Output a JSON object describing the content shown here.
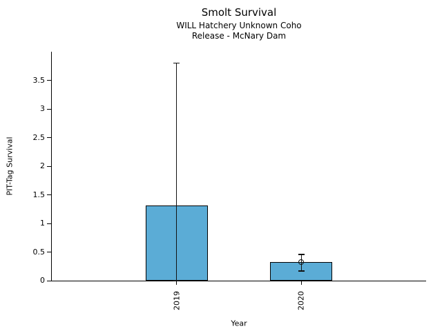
{
  "chart_data": {
    "type": "bar",
    "title": "Smolt Survival",
    "subtitle": [
      "WILL Hatchery Unknown Coho",
      "Release - McNary Dam"
    ],
    "categories": [
      "2019",
      "2020"
    ],
    "values": [
      1.31,
      0.33
    ],
    "error_low": [
      0.0,
      0.17
    ],
    "error_high": [
      3.8,
      0.46
    ],
    "point_estimates": [
      null,
      0.33
    ],
    "xlabel": "Year",
    "ylabel": "PIT-Tag Survival",
    "ylim": [
      0,
      4
    ],
    "yticks": [
      0,
      0.5,
      1,
      1.5,
      2,
      2.5,
      3,
      3.5
    ],
    "ytick_labels": [
      "0",
      "0.5",
      "1",
      "1.5",
      "2",
      "2.5",
      "3",
      "3.5"
    ],
    "grid": false,
    "legend": false,
    "marker_style": "open-circle",
    "colors": {
      "bar_fill": "#5BACD6",
      "bar_edge": "#000000",
      "error_bar": "#111111",
      "axis": "#000000",
      "text": "#000000",
      "background": "#ffffff"
    }
  }
}
